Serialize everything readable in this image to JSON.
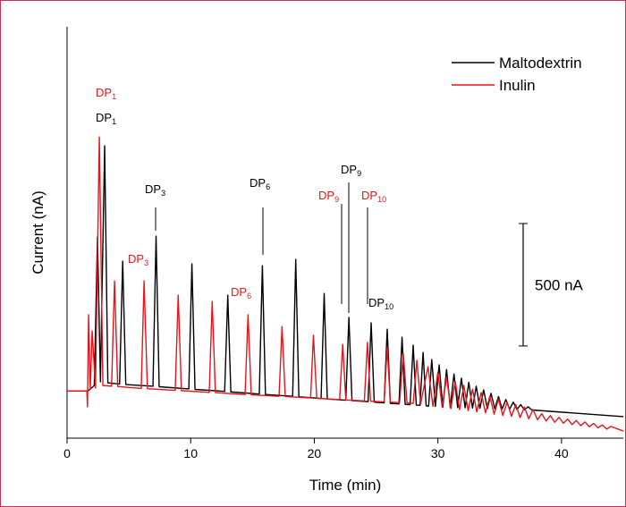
{
  "chart_data": {
    "type": "line",
    "xlabel": "Time (min)",
    "ylabel": "Current (nA)",
    "xlim": [
      0,
      45
    ],
    "xticks": [
      0,
      10,
      20,
      30,
      40
    ],
    "ylim": [
      0,
      1680
    ],
    "yticks": [],
    "legend": "top-right",
    "series": [
      {
        "name": "Maltodextrin",
        "color": "#000000",
        "x": [
          0,
          1.7,
          2.2,
          2.46,
          2.7,
          3.04,
          3.3,
          4.25,
          4.5,
          4.75,
          6.95,
          7.2,
          7.45,
          9.85,
          10.1,
          10.35,
          12.75,
          13.0,
          13.25,
          15.55,
          15.8,
          16.05,
          18.25,
          18.5,
          18.75,
          20.55,
          20.8,
          21.05,
          22.55,
          22.8,
          23.05,
          24.35,
          24.6,
          24.85,
          25.65,
          25.9,
          26.15,
          26.85,
          27.1,
          27.35,
          27.75,
          28.0,
          28.25,
          28.55,
          28.8,
          29.05,
          29.25,
          29.5,
          29.8,
          30.1,
          30.4,
          30.7,
          31.0,
          31.3,
          31.6,
          31.9,
          32.2,
          32.5,
          32.8,
          33.1,
          33.4,
          33.7,
          34.0,
          34.3,
          34.6,
          34.9,
          35.2,
          35.5,
          35.8,
          36.1,
          36.4,
          36.7,
          37.0,
          37.3,
          37.6,
          45
        ],
        "values": [
          193,
          193,
          215,
          821,
          230,
          1194,
          226,
          221,
          723,
          219,
          212,
          825,
          210,
          201,
          712,
          199,
          191,
          584,
          189,
          180,
          704,
          178,
          171,
          730,
          169,
          162,
          591,
          160,
          155,
          493,
          153,
          149,
          471,
          147,
          144,
          445,
          142,
          140,
          412,
          138,
          137,
          380,
          135,
          134,
          350,
          132,
          131,
          321,
          130,
          299,
          127,
          280,
          126,
          262,
          125,
          245,
          124,
          228,
          123,
          212,
          122,
          197,
          121,
          183,
          120,
          170,
          119,
          158,
          118,
          147,
          117,
          137,
          116,
          128,
          115,
          88
        ]
      },
      {
        "name": "Inulin",
        "color": "#e8141c",
        "x": [
          0,
          1.6,
          1.65,
          1.74,
          1.88,
          2.03,
          2.3,
          2.61,
          2.9,
          3.6,
          3.84,
          4.1,
          6.0,
          6.23,
          6.5,
          8.75,
          8.99,
          9.25,
          11.5,
          11.74,
          12.0,
          14.4,
          14.64,
          14.9,
          17.15,
          17.39,
          17.65,
          19.7,
          19.93,
          20.2,
          22.05,
          22.3,
          22.55,
          24.05,
          24.3,
          24.55,
          25.65,
          25.9,
          26.15,
          26.9,
          27.2,
          27.5,
          28.0,
          28.3,
          28.6,
          29.2,
          29.6,
          30.0,
          30.35,
          30.7,
          31.05,
          31.4,
          31.75,
          32.1,
          32.45,
          32.8,
          33.15,
          33.5,
          33.85,
          34.2,
          34.55,
          34.9,
          35.25,
          35.6,
          35.95,
          36.3,
          36.65,
          37.0,
          37.35,
          37.7,
          38.05,
          38.4,
          38.75,
          39.1,
          39.45,
          39.8,
          40.15,
          40.5,
          40.85,
          41.2,
          41.55,
          41.9,
          42.25,
          42.6,
          42.95,
          43.3,
          43.65,
          44.0,
          45
        ],
        "values": [
          193,
          193,
          128,
          504,
          200,
          438,
          205,
          1230,
          215,
          212,
          642,
          211,
          203,
          642,
          202,
          195,
          584,
          194,
          187,
          558,
          186,
          178,
          504,
          177,
          171,
          456,
          170,
          164,
          420,
          163,
          157,
          383,
          156,
          152,
          391,
          151,
          148,
          372,
          147,
          145,
          345,
          144,
          142,
          318,
          140,
          292,
          130,
          270,
          126,
          250,
          121,
          232,
          116,
          215,
          112,
          200,
          107,
          186,
          103,
          172,
          98,
          160,
          93,
          148,
          89,
          137,
          84,
          127,
          79,
          117,
          75,
          100,
          70,
          92,
          65,
          85,
          61,
          78,
          56,
          72,
          51,
          66,
          47,
          60,
          42,
          54,
          37,
          48,
          29
        ]
      }
    ],
    "scale_bar": {
      "value": 500,
      "label": "500 nA"
    },
    "annotations": [
      {
        "text": "DP",
        "sub": "1",
        "color": "#e8141c"
      },
      {
        "text": "DP",
        "sub": "1",
        "color": "#000000"
      },
      {
        "text": "DP",
        "sub": "3",
        "color": "#000000"
      },
      {
        "text": "DP",
        "sub": "3",
        "color": "#e8141c"
      },
      {
        "text": "DP",
        "sub": "6",
        "color": "#000000"
      },
      {
        "text": "DP",
        "sub": "6",
        "color": "#e8141c"
      },
      {
        "text": "DP",
        "sub": "9",
        "color": "#e8141c"
      },
      {
        "text": "DP",
        "sub": "9",
        "color": "#000000"
      },
      {
        "text": "DP",
        "sub": "10",
        "color": "#e8141c"
      },
      {
        "text": "DP",
        "sub": "10",
        "color": "#000000"
      }
    ]
  }
}
